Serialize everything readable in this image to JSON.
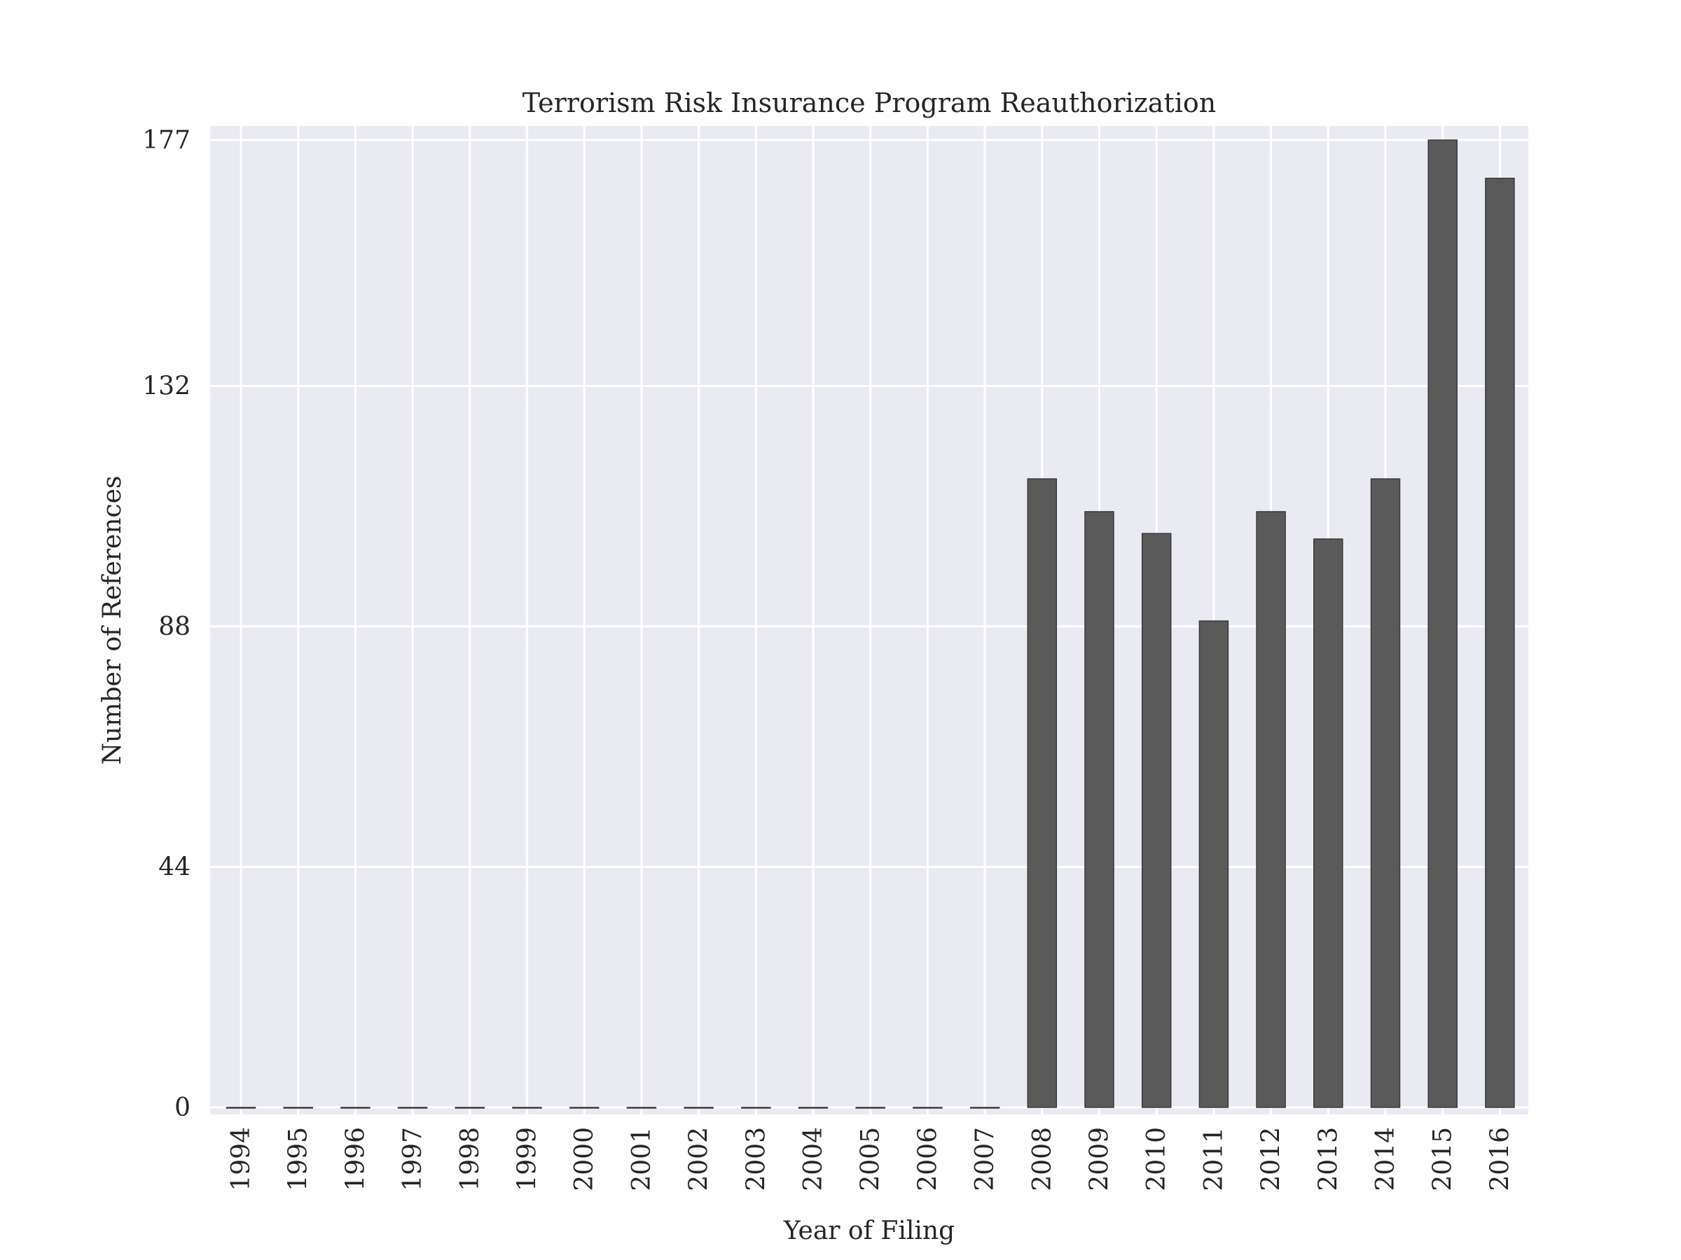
{
  "chart_data": {
    "type": "bar",
    "title": "Terrorism Risk Insurance Program Reauthorization",
    "xlabel": "Year of Filing",
    "ylabel": "Number of References",
    "categories": [
      "1994",
      "1995",
      "1996",
      "1997",
      "1998",
      "1999",
      "2000",
      "2001",
      "2002",
      "2003",
      "2004",
      "2005",
      "2006",
      "2007",
      "2008",
      "2009",
      "2010",
      "2011",
      "2012",
      "2013",
      "2014",
      "2015",
      "2016"
    ],
    "values": [
      0,
      0,
      0,
      0,
      0,
      0,
      0,
      0,
      0,
      0,
      0,
      0,
      0,
      0,
      115,
      109,
      105,
      89,
      109,
      104,
      115,
      177,
      170
    ],
    "yticks": [
      0,
      44,
      88,
      132,
      177
    ],
    "ylim": [
      0,
      177
    ],
    "grid": true,
    "colors": {
      "background": "#eaeaf2",
      "grid": "#ffffff",
      "bar_fill": "#5a5a5a",
      "bar_edge": "#3a3a3a"
    }
  }
}
